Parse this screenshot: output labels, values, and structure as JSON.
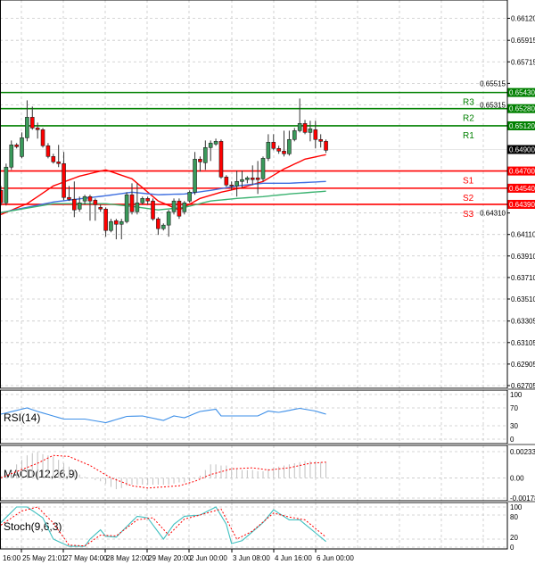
{
  "chart_data": {
    "type": "candlestick",
    "price_axis": {
      "ylim": [
        0.6268,
        0.6629
      ],
      "tick_labels": [
        "0.66120",
        "0.65915",
        "0.65715",
        "0.65515",
        "0.65315",
        "0.64310",
        "0.64110",
        "0.63910",
        "0.63710",
        "0.63510",
        "0.63305",
        "0.63105",
        "0.62905",
        "0.62705"
      ],
      "tick_values": [
        0.6612,
        0.65915,
        0.65715,
        0.65515,
        0.65315,
        0.6431,
        0.6411,
        0.6391,
        0.6371,
        0.6351,
        0.63305,
        0.63105,
        0.62905,
        0.62705
      ]
    },
    "time_axis": {
      "labels": [
        "16:00",
        "25 May 21:01",
        "27 May 04:00",
        "28 May 12:00",
        "29 May 20:00",
        "2 Jun 00:00",
        "3 Jun 08:00",
        "4 Jun 16:00",
        "6 Jun 00:00"
      ],
      "label_candle": [
        0,
        4,
        12,
        20,
        28,
        36,
        44,
        52,
        60
      ]
    },
    "grid": true,
    "candles_ohlc": [
      [
        0.6452,
        0.64561,
        0.64379,
        0.64404
      ],
      [
        0.64404,
        0.64769,
        0.64379,
        0.64736
      ],
      [
        0.64736,
        0.64984,
        0.64711,
        0.64943
      ],
      [
        0.64943,
        0.64959,
        0.6491,
        0.64926
      ],
      [
        0.64835,
        0.65059,
        0.64818,
        0.65009
      ],
      [
        0.65009,
        0.65357,
        0.64976,
        0.652
      ],
      [
        0.652,
        0.65299,
        0.65084,
        0.651
      ],
      [
        0.651,
        0.6515,
        0.65001,
        0.65084
      ],
      [
        0.65084,
        0.651,
        0.64918,
        0.64935
      ],
      [
        0.64935,
        0.64959,
        0.64818,
        0.64835
      ],
      [
        0.64835,
        0.6486,
        0.64769,
        0.64785
      ],
      [
        0.64785,
        0.64943,
        0.64736,
        0.64769
      ],
      [
        0.64769,
        0.64877,
        0.64429,
        0.64454
      ],
      [
        0.64454,
        0.64561,
        0.64421,
        0.64437
      ],
      [
        0.64437,
        0.64603,
        0.64271,
        0.64338
      ],
      [
        0.64346,
        0.64462,
        0.64321,
        0.64404
      ],
      [
        0.64421,
        0.64479,
        0.64387,
        0.64462
      ],
      [
        0.64462,
        0.64479,
        0.64238,
        0.64421
      ],
      [
        0.64429,
        0.64445,
        0.64238,
        0.64387
      ],
      [
        0.64362,
        0.64387,
        0.64321,
        0.64346
      ],
      [
        0.64346,
        0.64362,
        0.64089,
        0.64147
      ],
      [
        0.64147,
        0.64255,
        0.6413,
        0.6423
      ],
      [
        0.64238,
        0.64255,
        0.64065,
        0.64205
      ],
      [
        0.64205,
        0.64255,
        0.64065,
        0.6423
      ],
      [
        0.6423,
        0.64503,
        0.64213,
        0.64479
      ],
      [
        0.64479,
        0.64586,
        0.64296,
        0.64321
      ],
      [
        0.64321,
        0.64586,
        0.64296,
        0.64404
      ],
      [
        0.64404,
        0.64462,
        0.64387,
        0.64445
      ],
      [
        0.64445,
        0.64462,
        0.64387,
        0.64421
      ],
      [
        0.64421,
        0.64445,
        0.64238,
        0.64255
      ],
      [
        0.64255,
        0.64271,
        0.64106,
        0.64164
      ],
      [
        0.64164,
        0.64213,
        0.64147,
        0.64197
      ],
      [
        0.64197,
        0.64338,
        0.64089,
        0.64321
      ],
      [
        0.64321,
        0.64445,
        0.64296,
        0.64421
      ],
      [
        0.64421,
        0.64445,
        0.64255,
        0.6428
      ],
      [
        0.64321,
        0.64421,
        0.64296,
        0.64404
      ],
      [
        0.64421,
        0.6452,
        0.64404,
        0.64503
      ],
      [
        0.64503,
        0.64877,
        0.64479,
        0.6481
      ],
      [
        0.6481,
        0.64835,
        0.64694,
        0.64785
      ],
      [
        0.64777,
        0.64984,
        0.64711,
        0.64918
      ],
      [
        0.64918,
        0.64984,
        0.64793,
        0.64959
      ],
      [
        0.64951,
        0.65001,
        0.64935,
        0.64976
      ],
      [
        0.64976,
        0.64993,
        0.64628,
        0.64644
      ],
      [
        0.64644,
        0.64661,
        0.64553,
        0.6457
      ],
      [
        0.6457,
        0.64603,
        0.6452,
        0.64561
      ],
      [
        0.64561,
        0.64702,
        0.64462,
        0.64603
      ],
      [
        0.64603,
        0.64702,
        0.64545,
        0.6462
      ],
      [
        0.6462,
        0.64652,
        0.64586,
        0.64636
      ],
      [
        0.64636,
        0.64752,
        0.6457,
        0.6462
      ],
      [
        0.64636,
        0.64793,
        0.64487,
        0.6462
      ],
      [
        0.64628,
        0.64835,
        0.64603,
        0.64818
      ],
      [
        0.64818,
        0.65042,
        0.64793,
        0.64968
      ],
      [
        0.64968,
        0.65042,
        0.64893,
        0.6491
      ],
      [
        0.6491,
        0.64935,
        0.6486,
        0.64885
      ],
      [
        0.64885,
        0.65075,
        0.64835,
        0.6486
      ],
      [
        0.6486,
        0.65075,
        0.64843,
        0.64993
      ],
      [
        0.64993,
        0.651,
        0.64976,
        0.65075
      ],
      [
        0.65075,
        0.65374,
        0.65059,
        0.65142
      ],
      [
        0.65142,
        0.65175,
        0.65042,
        0.65059
      ],
      [
        0.65059,
        0.65167,
        0.64976,
        0.65092
      ],
      [
        0.65084,
        0.65167,
        0.6491,
        0.64993
      ],
      [
        0.64993,
        0.65042,
        0.64918,
        0.64976
      ],
      [
        0.64976,
        0.64993,
        0.64868,
        0.64893
      ]
    ],
    "moving_averages": [
      {
        "color": "#ff0000",
        "values": [
          0.64296,
          null,
          null,
          null,
          null,
          0.64396,
          null,
          null,
          null,
          null,
          0.64561,
          null,
          null,
          null,
          null,
          0.64653,
          null,
          null,
          null,
          null,
          0.64711,
          null,
          null,
          null,
          null,
          0.64628,
          null,
          null,
          null,
          null,
          0.64421,
          null,
          null,
          null,
          0.64338,
          null,
          null,
          null,
          0.64445,
          null,
          null,
          null,
          0.64503,
          null,
          null,
          null,
          0.64545,
          null,
          null,
          null,
          0.64603,
          null,
          null,
          null,
          0.64719,
          null,
          null,
          null,
          0.6481,
          null,
          null,
          null,
          0.64852
        ]
      },
      {
        "color": "#3f6fe0",
        "values": [
          0.64313,
          null,
          null,
          null,
          null,
          null,
          null,
          null,
          null,
          null,
          0.64412,
          null,
          null,
          null,
          null,
          null,
          null,
          null,
          null,
          null,
          0.6447,
          null,
          null,
          null,
          null,
          0.64503,
          null,
          null,
          null,
          null,
          0.64479,
          null,
          null,
          null,
          null,
          0.64487,
          null,
          null,
          null,
          null,
          0.6452,
          null,
          null,
          null,
          null,
          0.64561,
          null,
          null,
          null,
          null,
          0.64586,
          null,
          null,
          null,
          null,
          0.64586,
          null,
          null,
          null,
          null,
          null,
          null,
          0.64603
        ]
      },
      {
        "color": "#3cb371",
        "values": [
          0.64313,
          null,
          null,
          null,
          null,
          null,
          null,
          null,
          null,
          null,
          0.64396,
          null,
          null,
          null,
          null,
          null,
          null,
          null,
          null,
          null,
          0.64396,
          null,
          null,
          null,
          null,
          0.64371,
          null,
          null,
          null,
          null,
          0.64338,
          null,
          null,
          null,
          null,
          0.64362,
          null,
          null,
          null,
          null,
          0.64421,
          null,
          null,
          null,
          null,
          0.64445,
          null,
          null,
          null,
          null,
          0.64462,
          null,
          null,
          null,
          null,
          0.64487,
          null,
          null,
          null,
          null,
          null,
          null,
          0.64512
        ]
      }
    ],
    "current_price": {
      "label": "0.64900",
      "value": 0.649,
      "color": "#000000"
    },
    "levels": [
      {
        "name": "R3",
        "value": 0.6543,
        "label": "0.65430",
        "color": "#008000"
      },
      {
        "name": "R2",
        "value": 0.6528,
        "label": "0.65280",
        "color": "#008000"
      },
      {
        "name": "R1",
        "value": 0.6512,
        "label": "0.65120",
        "color": "#008000"
      },
      {
        "name": "S1",
        "value": 0.647,
        "label": "0.64700",
        "color": "#ff0000"
      },
      {
        "name": "S2",
        "value": 0.6454,
        "label": "0.64540",
        "color": "#ff0000"
      },
      {
        "name": "S3",
        "value": 0.6439,
        "label": "0.64390",
        "color": "#ff0000"
      }
    ],
    "colors": {
      "bull": "#3a9a5b",
      "bear": "#ff0000"
    },
    "indicators": {
      "rsi": {
        "title": "RSI(14)",
        "ylim": [
          0,
          100
        ],
        "tick_labels": [
          "100",
          "70",
          "30",
          "0"
        ],
        "tick_values": [
          100,
          70,
          30,
          0
        ],
        "color": "#3d8fe8",
        "values": [
          56,
          null,
          null,
          null,
          null,
          70,
          null,
          62,
          null,
          null,
          null,
          null,
          45,
          null,
          null,
          null,
          45,
          null,
          null,
          null,
          37,
          null,
          null,
          null,
          51,
          null,
          null,
          52,
          null,
          null,
          null,
          42,
          null,
          52,
          null,
          48,
          null,
          null,
          62,
          null,
          null,
          67,
          52,
          null,
          null,
          null,
          null,
          null,
          null,
          52,
          null,
          63,
          null,
          60,
          null,
          null,
          null,
          69,
          null,
          65,
          63,
          null,
          56
        ]
      },
      "macd": {
        "title": "MACD(12,26,9)",
        "ylim": [
          -0.001788,
          0.00233
        ],
        "tick_labels": [
          "0.00233",
          "0.00",
          "-0.001788"
        ],
        "tick_values": [
          0.00233,
          0,
          -0.001788
        ],
        "histogram": [
          0.0002,
          0.0004,
          0.0006,
          0.0012,
          0.0016,
          0.002,
          0.0022,
          0.0023,
          0.0021,
          0.002,
          0.0019,
          0.0016,
          0.0013,
          0.001,
          0.0006,
          0.0003,
          0.0001,
          0.0,
          -0.0002,
          -0.0003,
          -0.0005,
          -0.0008,
          -0.001,
          -0.0009,
          -0.0007,
          -0.0006,
          -0.0006,
          -0.0006,
          -0.0006,
          -0.0006,
          -0.0006,
          -0.0006,
          -0.0006,
          -0.0005,
          -0.0004,
          -0.0004,
          -0.0003,
          -0.0001,
          0.0002,
          0.0007,
          0.0012,
          0.0012,
          0.0011,
          0.0011,
          0.0009,
          0.0008,
          0.0007,
          0.0007,
          0.0007,
          0.0006,
          0.0006,
          0.0008,
          0.0009,
          0.001,
          0.0011,
          0.0012,
          0.0013,
          0.0014,
          0.0015,
          0.0015,
          0.0015,
          0.0014,
          0.0014
        ],
        "signal": [
          0,
          null,
          null,
          null,
          null,
          null,
          null,
          0.0013,
          null,
          null,
          0.002,
          null,
          null,
          0.0019,
          null,
          null,
          null,
          0.0011,
          null,
          null,
          null,
          0.0,
          null,
          null,
          null,
          -0.0007,
          null,
          null,
          -0.0009,
          null,
          null,
          null,
          null,
          null,
          -0.0007,
          null,
          null,
          -0.0003,
          null,
          null,
          0.0003,
          null,
          null,
          null,
          0.0008,
          null,
          null,
          null,
          0.0009,
          null,
          null,
          0.0007,
          null,
          null,
          null,
          0.0009,
          null,
          null,
          null,
          0.0013,
          null,
          null,
          0.0014
        ],
        "histogram_color": "#c0c0c0",
        "signal_color": "#ff0000"
      },
      "stochastic": {
        "title": "Stoch(9,6,3)",
        "ylim": [
          0,
          100
        ],
        "tick_labels": [
          "100",
          "80",
          "20",
          "0"
        ],
        "tick_values": [
          100,
          80,
          20,
          0
        ],
        "main_color": "#40c0c0",
        "signal_color": "#ff0000",
        "main": [
          61,
          null,
          null,
          100,
          null,
          100,
          null,
          null,
          73,
          null,
          20,
          null,
          null,
          2,
          null,
          null,
          2,
          20,
          null,
          43,
          27,
          null,
          25,
          null,
          null,
          null,
          77,
          null,
          73,
          null,
          null,
          20,
          null,
          57,
          null,
          77,
          null,
          null,
          80,
          null,
          null,
          100,
          null,
          57,
          9,
          null,
          16,
          null,
          null,
          null,
          61,
          null,
          93,
          null,
          null,
          68,
          null,
          68,
          null,
          null,
          null,
          null,
          14
        ],
        "signal": [
          55,
          null,
          null,
          null,
          90,
          null,
          null,
          100,
          null,
          null,
          60,
          null,
          null,
          5,
          null,
          null,
          3,
          null,
          null,
          30,
          null,
          null,
          28,
          null,
          null,
          null,
          68,
          null,
          null,
          73,
          null,
          null,
          30,
          null,
          null,
          70,
          null,
          null,
          80,
          null,
          null,
          null,
          95,
          null,
          null,
          20,
          null,
          null,
          40,
          null,
          null,
          null,
          85,
          null,
          null,
          75,
          null,
          null,
          68,
          null,
          null,
          null,
          25
        ]
      }
    }
  }
}
